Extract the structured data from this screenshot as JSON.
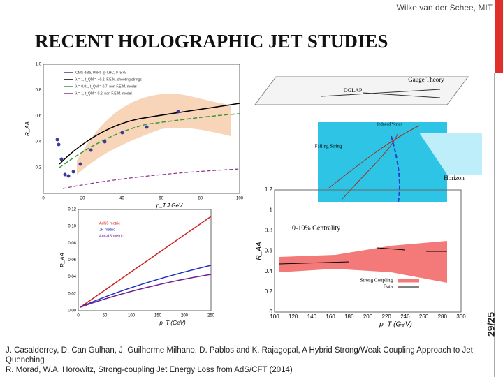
{
  "header": {
    "author": "Wilke van der Schee, MIT",
    "title": "RECENT HOLOGRAPHIC JET STUDIES",
    "page": "29/25"
  },
  "figures": [
    {
      "ylabel": "R_AA",
      "xlabel": "p_T,J GeV",
      "xticks": [
        "0",
        "20",
        "40",
        "60",
        "80",
        "100"
      ],
      "yticks": [
        "0.2",
        "0.4",
        "0.6",
        "0.8",
        "1.0"
      ],
      "legend": [
        "CMS data, PbPb @ LHC, 0–5 %",
        "λ = 1, t_QM = ~0.2, F.E.M. shooting strings",
        "λ = 0.01, t_QM = 0.7, non-F.E.M. model",
        "λ = 1, t_QM = 0.2, non-F.E.M. model"
      ]
    },
    {
      "ylabel": "R_AA",
      "xlabel": "p_T (GeV)",
      "xticks": [
        "0",
        "50",
        "100",
        "150",
        "200",
        "250"
      ],
      "yticks": [
        "0.00",
        "0.02",
        "0.04",
        "0.06",
        "0.08",
        "0.10",
        "0.12"
      ],
      "legend": [
        "AdS5 metric",
        "JP metric",
        "Anti-dS metric"
      ]
    },
    {
      "labels": [
        "Gauge Theory",
        "DGLAP",
        "Induced Vertex",
        "Falling String",
        "Horizon"
      ]
    },
    {
      "ylabel": "R_AA",
      "xlabel": "p_T (GeV)",
      "xticks": [
        "100",
        "120",
        "140",
        "160",
        "180",
        "200",
        "220",
        "240",
        "260",
        "280",
        "300"
      ],
      "yticks": [
        "0",
        "0.2",
        "0.4",
        "0.6",
        "0.8",
        "1",
        "1.2"
      ],
      "annotation": "0-10% Centrality",
      "legend": [
        "Strong Coupling",
        "Data"
      ]
    }
  ],
  "references": [
    "J. Casalderrey, D. Can Gulhan, J. Guilherme Milhano, D. Pablos and K. Rajagopal, A Hybrid Strong/Weak Coupling Approach to Jet Quenching",
    "R. Morad, W.A. Horowitz, Strong-coupling Jet Energy Loss from AdS/CFT (2014)"
  ]
}
